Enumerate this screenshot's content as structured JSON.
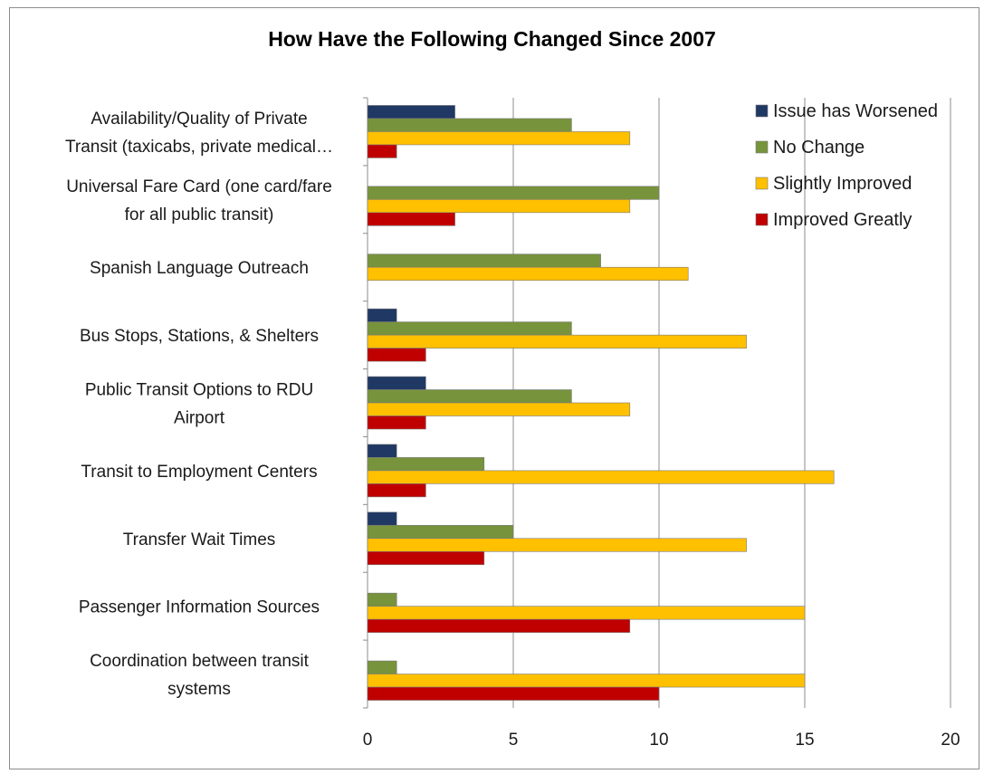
{
  "chart_data": {
    "type": "bar",
    "orientation": "horizontal",
    "title": "How Have the Following Changed Since 2007",
    "categories": [
      [
        "Availability/Quality of Private",
        "Transit (taxicabs, private medical…"
      ],
      [
        "Universal Fare Card (one card/fare",
        "for all public transit)"
      ],
      [
        "Spanish Language Outreach"
      ],
      [
        "Bus Stops, Stations, & Shelters"
      ],
      [
        "Public Transit Options to RDU",
        "Airport"
      ],
      [
        "Transit to Employment Centers"
      ],
      [
        "Transfer Wait Times"
      ],
      [
        "Passenger Information Sources"
      ],
      [
        "Coordination between transit",
        "systems"
      ]
    ],
    "series": [
      {
        "name": "Issue has Worsened",
        "color": "#1f3864",
        "values": [
          3,
          0,
          0,
          1,
          2,
          1,
          1,
          0,
          0
        ]
      },
      {
        "name": "No Change",
        "color": "#77933c",
        "values": [
          7,
          10,
          8,
          7,
          7,
          4,
          5,
          1,
          1
        ]
      },
      {
        "name": "Slightly Improved",
        "color": "#ffc000",
        "values": [
          9,
          9,
          11,
          13,
          9,
          16,
          13,
          15,
          15
        ]
      },
      {
        "name": "Improved Greatly",
        "color": "#c00000",
        "values": [
          1,
          3,
          0,
          2,
          2,
          2,
          4,
          9,
          10
        ]
      }
    ],
    "xlim": [
      0,
      20
    ],
    "xticks": [
      0,
      5,
      10,
      15,
      20
    ],
    "grid": true,
    "legend_position": "top-right"
  }
}
